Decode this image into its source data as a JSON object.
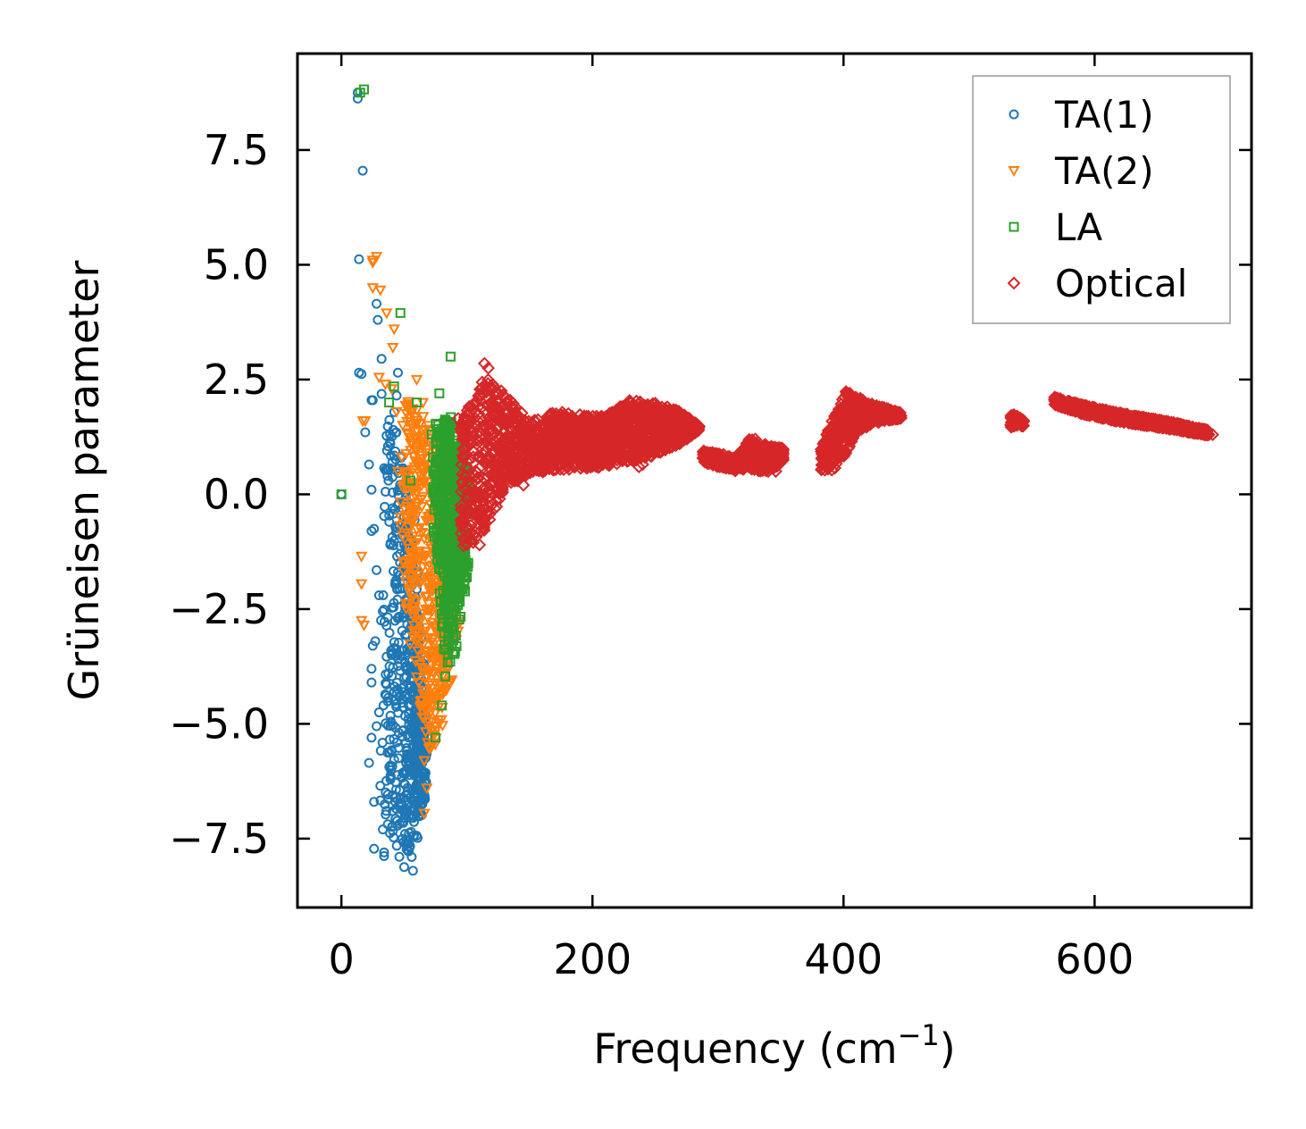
{
  "chart_data": {
    "type": "scatter",
    "xlabel": "Frequency (cm",
    "xlabel_sup": "−1",
    "xlabel_end": ")",
    "ylabel": "Grüneisen parameter",
    "xlim": [
      -35,
      725
    ],
    "ylim": [
      -9.0,
      9.6
    ],
    "xticks": [
      0,
      200,
      400,
      600
    ],
    "xtick_labels": [
      "0",
      "200",
      "400",
      "600"
    ],
    "yticks": [
      -7.5,
      -5.0,
      -2.5,
      0.0,
      2.5,
      5.0,
      7.5
    ],
    "ytick_labels": [
      "−7.5",
      "−5.0",
      "−2.5",
      "0.0",
      "2.5",
      "5.0",
      "7.5"
    ],
    "grid": false,
    "legend_position": "top-right",
    "series": [
      {
        "name": "TA(1)",
        "marker": "circle",
        "color": "#1f77b4",
        "points": [
          [
            13,
            8.75
          ],
          [
            13,
            8.62
          ],
          [
            17,
            7.05
          ],
          [
            14,
            5.12
          ],
          [
            28,
            4.15
          ],
          [
            29,
            3.8
          ],
          [
            14,
            2.65
          ],
          [
            16,
            2.62
          ],
          [
            32,
            2.95
          ],
          [
            24,
            2.05
          ],
          [
            25,
            2.05
          ],
          [
            19,
            1.35
          ],
          [
            22,
            0.65
          ],
          [
            24,
            0.1
          ],
          [
            0,
            0.0
          ],
          [
            24,
            -0.8
          ],
          [
            26,
            -0.75
          ],
          [
            28,
            -1.65
          ],
          [
            30,
            -2.2
          ],
          [
            33,
            -2.55
          ],
          [
            27,
            -3.2
          ],
          [
            25,
            -3.3
          ],
          [
            24,
            -3.8
          ],
          [
            24,
            -4.1
          ],
          [
            30,
            -4.75
          ],
          [
            28,
            -5.05
          ],
          [
            24,
            -5.3
          ],
          [
            22,
            -5.85
          ],
          [
            31,
            -6.35
          ],
          [
            26,
            -6.7
          ],
          [
            33,
            -7.3
          ],
          [
            26,
            -7.72
          ],
          [
            34,
            -7.8
          ],
          [
            34,
            -7.88
          ],
          [
            50,
            -8.12
          ],
          [
            57,
            -8.2
          ],
          [
            45,
            -2.7
          ],
          [
            45,
            2.65
          ],
          [
            44,
            2.15
          ],
          [
            39,
            1.1
          ],
          [
            36,
            0.55
          ],
          [
            41,
            -0.3
          ],
          [
            39,
            -1.1
          ],
          [
            43,
            -1.9
          ],
          [
            40,
            -3.5
          ],
          [
            42,
            -4.3
          ],
          [
            40,
            -5.6
          ],
          [
            41,
            -6.9
          ],
          [
            54,
            -7.6
          ],
          [
            56,
            -7.9
          ]
        ]
      },
      {
        "name": "TA(2)",
        "marker": "triangle-down",
        "color": "#ff7f0e",
        "points": [
          [
            28,
            5.18
          ],
          [
            25,
            5.1
          ],
          [
            25,
            5.05
          ],
          [
            25,
            4.5
          ],
          [
            31,
            4.45
          ],
          [
            36,
            3.95
          ],
          [
            42,
            3.6
          ],
          [
            41,
            3.2
          ],
          [
            30,
            2.55
          ],
          [
            35,
            2.4
          ],
          [
            40,
            2.3
          ],
          [
            17,
            1.6
          ],
          [
            19,
            1.6
          ],
          [
            44,
            1.8
          ],
          [
            16,
            -1.35
          ],
          [
            16,
            -1.95
          ],
          [
            16,
            -2.75
          ],
          [
            18,
            -2.85
          ],
          [
            45,
            0.5
          ],
          [
            47,
            -0.5
          ],
          [
            50,
            -1.5
          ],
          [
            60,
            -3.0
          ],
          [
            63,
            -4.5
          ],
          [
            66,
            -5.8
          ],
          [
            68,
            -6.4
          ],
          [
            66,
            -6.95
          ],
          [
            88,
            -0.7
          ],
          [
            80,
            -2.0
          ],
          [
            75,
            -3.4
          ],
          [
            60,
            2.5
          ],
          [
            65,
            2.0
          ]
        ]
      },
      {
        "name": "LA",
        "marker": "square",
        "color": "#2ca02c",
        "points": [
          [
            18,
            8.82
          ],
          [
            15,
            8.75
          ],
          [
            47,
            3.95
          ],
          [
            87,
            3.0
          ],
          [
            78,
            2.2
          ],
          [
            42,
            2.35
          ],
          [
            38,
            2.0
          ],
          [
            60,
            2.0
          ],
          [
            72,
            1.3
          ],
          [
            55,
            0.3
          ],
          [
            0,
            0.0
          ],
          [
            95,
            0.4
          ],
          [
            97,
            -0.8
          ],
          [
            92,
            -1.6
          ],
          [
            90,
            -2.4
          ],
          [
            85,
            -3.5
          ],
          [
            80,
            -4.6
          ],
          [
            75,
            -5.3
          ]
        ]
      },
      {
        "name": "Optical",
        "marker": "diamond",
        "color": "#d62728",
        "points": [
          [
            114,
            2.85
          ],
          [
            117,
            2.75
          ],
          [
            100,
            1.75
          ],
          [
            93,
            1.65
          ],
          [
            145,
            0.2
          ],
          [
            126,
            -0.1
          ],
          [
            118,
            -0.55
          ],
          [
            110,
            -1.1
          ],
          [
            105,
            -1.05
          ],
          [
            100,
            -1.1
          ],
          [
            240,
            0.65
          ],
          [
            237,
            0.6
          ],
          [
            282,
            1.45
          ],
          [
            346,
            0.5
          ],
          [
            340,
            0.5
          ],
          [
            691,
            1.3
          ],
          [
            694,
            1.3
          ],
          [
            405,
            2.2
          ],
          [
            570,
            2.05
          ],
          [
            540,
            1.6
          ]
        ],
        "bands": [
          {
            "x": [
              95,
              115,
              130,
              150,
              170,
              190,
              210,
              230,
              250,
              270,
              285
            ],
            "ylo": [
              -1.2,
              -0.8,
              0.1,
              0.45,
              0.5,
              0.55,
              0.6,
              0.7,
              0.85,
              1.1,
              1.4
            ],
            "yhi": [
              1.6,
              2.6,
              2.2,
              1.6,
              1.8,
              1.75,
              1.7,
              2.05,
              2.0,
              1.8,
              1.5
            ]
          },
          {
            "x": [
              288,
              300,
              315,
              325,
              335,
              345,
              352
            ],
            "ylo": [
              0.7,
              0.6,
              0.5,
              0.55,
              0.5,
              0.55,
              0.75
            ],
            "yhi": [
              0.95,
              0.9,
              0.8,
              1.3,
              1.1,
              1.05,
              1.0
            ]
          },
          {
            "x": [
              382,
              392,
              402,
              410,
              420,
              432,
              446
            ],
            "ylo": [
              0.5,
              0.5,
              0.9,
              1.3,
              1.5,
              1.6,
              1.65
            ],
            "yhi": [
              1.0,
              1.7,
              2.25,
              2.15,
              2.0,
              1.9,
              1.78
            ]
          },
          {
            "x": [
              533,
              538,
              544
            ],
            "ylo": [
              1.45,
              1.5,
              1.48
            ],
            "yhi": [
              1.75,
              1.72,
              1.6
            ]
          },
          {
            "x": [
              568,
              590,
              615,
              640,
              665,
              690
            ],
            "ylo": [
              1.95,
              1.75,
              1.6,
              1.5,
              1.4,
              1.28
            ],
            "yhi": [
              2.12,
              1.95,
              1.8,
              1.68,
              1.55,
              1.4
            ]
          }
        ]
      }
    ]
  }
}
